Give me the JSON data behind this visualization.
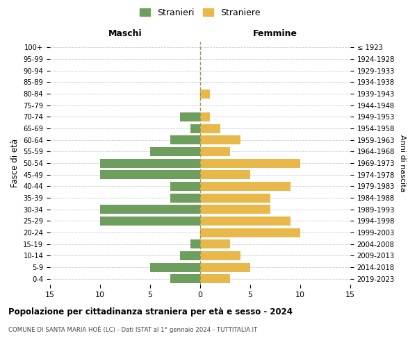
{
  "age_groups": [
    "0-4",
    "5-9",
    "10-14",
    "15-19",
    "20-24",
    "25-29",
    "30-34",
    "35-39",
    "40-44",
    "45-49",
    "50-54",
    "55-59",
    "60-64",
    "65-69",
    "70-74",
    "75-79",
    "80-84",
    "85-89",
    "90-94",
    "95-99",
    "100+"
  ],
  "birth_years": [
    "2019-2023",
    "2014-2018",
    "2009-2013",
    "2004-2008",
    "1999-2003",
    "1994-1998",
    "1989-1993",
    "1984-1988",
    "1979-1983",
    "1974-1978",
    "1969-1973",
    "1964-1968",
    "1959-1963",
    "1954-1958",
    "1949-1953",
    "1944-1948",
    "1939-1943",
    "1934-1938",
    "1929-1933",
    "1924-1928",
    "≤ 1923"
  ],
  "maschi": [
    3,
    5,
    2,
    1,
    0,
    10,
    10,
    3,
    3,
    10,
    10,
    5,
    3,
    1,
    2,
    0,
    0,
    0,
    0,
    0,
    0
  ],
  "femmine": [
    3,
    5,
    4,
    3,
    10,
    9,
    7,
    7,
    9,
    5,
    10,
    3,
    4,
    2,
    1,
    0,
    1,
    0,
    0,
    0,
    0
  ],
  "male_color": "#6e9e5e",
  "female_color": "#e8b84b",
  "title": "Popolazione per cittadinanza straniera per età e sesso - 2024",
  "subtitle": "COMUNE DI SANTA MARIA HOÈ (LC) - Dati ISTAT al 1° gennaio 2024 - TUTTITALIA.IT",
  "xlabel_left": "Maschi",
  "xlabel_right": "Femmine",
  "ylabel_left": "Fasce di età",
  "ylabel_right": "Anni di nascita",
  "legend_male": "Stranieri",
  "legend_female": "Straniere",
  "xlim": 15,
  "background_color": "#ffffff",
  "grid_color": "#cccccc",
  "center_line_color": "#999966"
}
